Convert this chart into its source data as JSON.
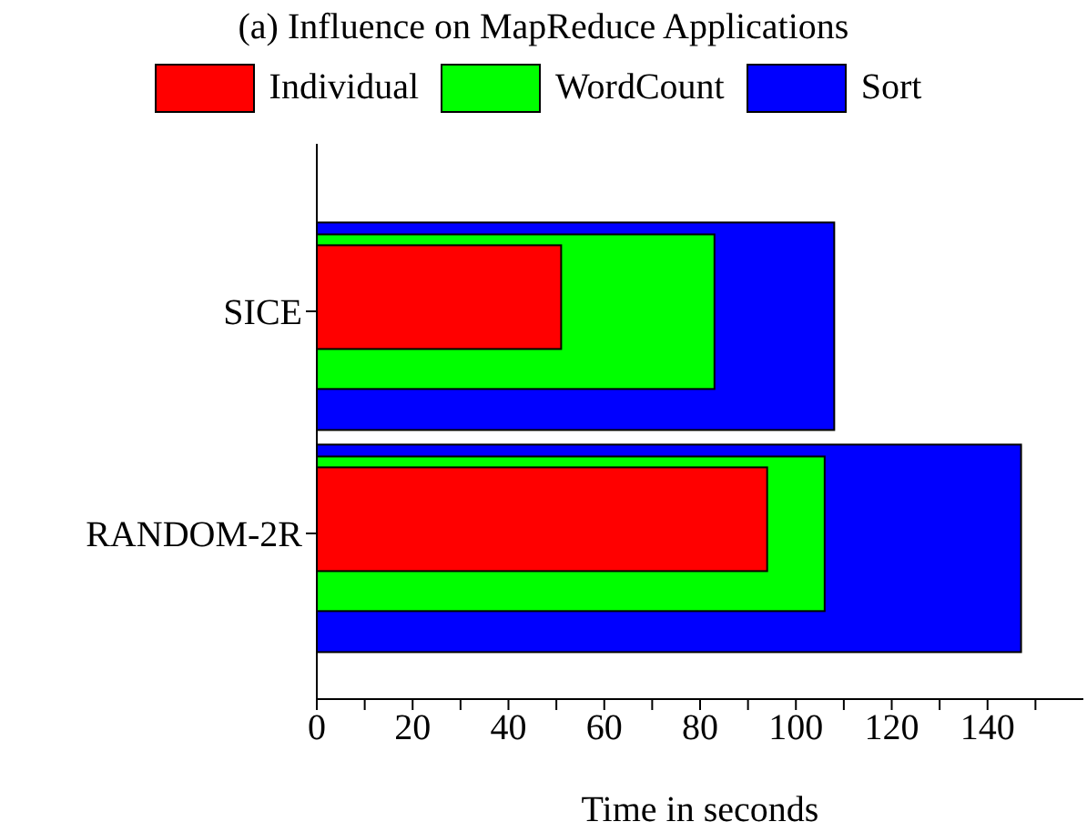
{
  "chart_data": {
    "type": "bar",
    "orientation": "horizontal",
    "title": "(a) Influence on MapReduce Applications",
    "xlabel": "Time in seconds",
    "categories": [
      "SICE",
      "RANDOM-2R"
    ],
    "series": [
      {
        "name": "Individual",
        "color": "#ff0000",
        "values": [
          51,
          94
        ]
      },
      {
        "name": "WordCount",
        "color": "#00ff00",
        "values": [
          83,
          106
        ]
      },
      {
        "name": "Sort",
        "color": "#0000ff",
        "values": [
          108,
          147
        ]
      }
    ],
    "xlim": [
      0,
      160
    ],
    "xticks": [
      0,
      {
        "value": 10,
        "label": null
      },
      20,
      {
        "value": 30,
        "label": null
      },
      40,
      {
        "value": 50,
        "label": null
      },
      60,
      {
        "value": 70,
        "label": null
      },
      80,
      {
        "value": 90,
        "label": null
      },
      100,
      {
        "value": 110,
        "label": null
      },
      120,
      {
        "value": 130,
        "label": null
      },
      140,
      {
        "value": 150,
        "label": null
      }
    ],
    "legend": "top"
  }
}
